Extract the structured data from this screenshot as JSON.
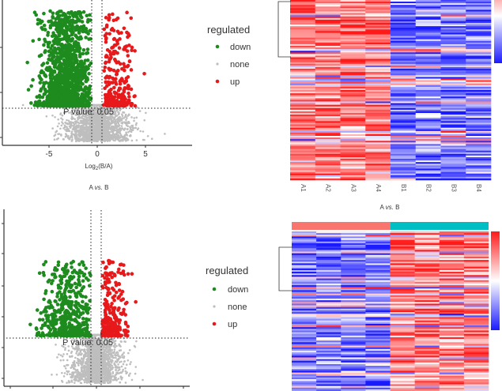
{
  "chart_data": [
    {
      "type": "scatter",
      "id": "volcano-top",
      "xlabel": "Log2(B/A)",
      "xlabel_base": "Log",
      "xlabel_sub": "2",
      "xlabel_rest": "(B/A)",
      "x_ticks": [
        "-5",
        "0",
        "5"
      ],
      "xlim": [
        -10,
        10
      ],
      "caption_a": "A",
      "caption_vs": "vs.",
      "caption_b": "B",
      "threshold_label": "P value: 0.05",
      "fold_change_lines": [
        -0.58,
        0.58
      ],
      "legend": {
        "title": "regulated",
        "placement": "right",
        "entries": [
          {
            "label": "down",
            "color": "#1E8B1E"
          },
          {
            "label": "none",
            "color": "#BEBEBE"
          },
          {
            "label": "up",
            "color": "#E8191B"
          }
        ]
      },
      "series": [
        {
          "name": "down",
          "approx_count": 2500,
          "x_range": [
            -8.7,
            -0.6
          ]
        },
        {
          "name": "none",
          "approx_count": 4000,
          "x_range": [
            -7,
            7.5
          ]
        },
        {
          "name": "up",
          "approx_count": 400,
          "x_range": [
            0.6,
            5.4
          ]
        }
      ]
    },
    {
      "type": "heatmap",
      "id": "heatmap-top",
      "columns": [
        "A1",
        "A2",
        "A3",
        "A4",
        "B1",
        "B2",
        "B3",
        "B4"
      ],
      "caption_a": "A",
      "caption_vs": "vs.",
      "caption_b": "B",
      "pattern": "A samples high (red), B samples low (blue)",
      "color_low": "#1A1AFF",
      "color_mid": "#FFFFFF",
      "color_high": "#FF1A1A"
    },
    {
      "type": "scatter",
      "id": "volcano-bottom",
      "threshold_label": "P value: 0.05",
      "legend": {
        "title": "regulated",
        "placement": "right",
        "entries": [
          {
            "label": "down",
            "color": "#1E8B1E"
          },
          {
            "label": "none",
            "color": "#BEBEBE"
          },
          {
            "label": "up",
            "color": "#E8191B"
          }
        ]
      }
    },
    {
      "type": "heatmap",
      "id": "heatmap-bottom",
      "groups": [
        {
          "color": "#F8766D"
        },
        {
          "color": "#00BFC4"
        }
      ],
      "pattern": "first 4 columns low (blue), last 4 columns high (red)",
      "color_low": "#1A1AFF",
      "color_mid": "#FFFFFF",
      "color_high": "#FF1A1A"
    }
  ]
}
